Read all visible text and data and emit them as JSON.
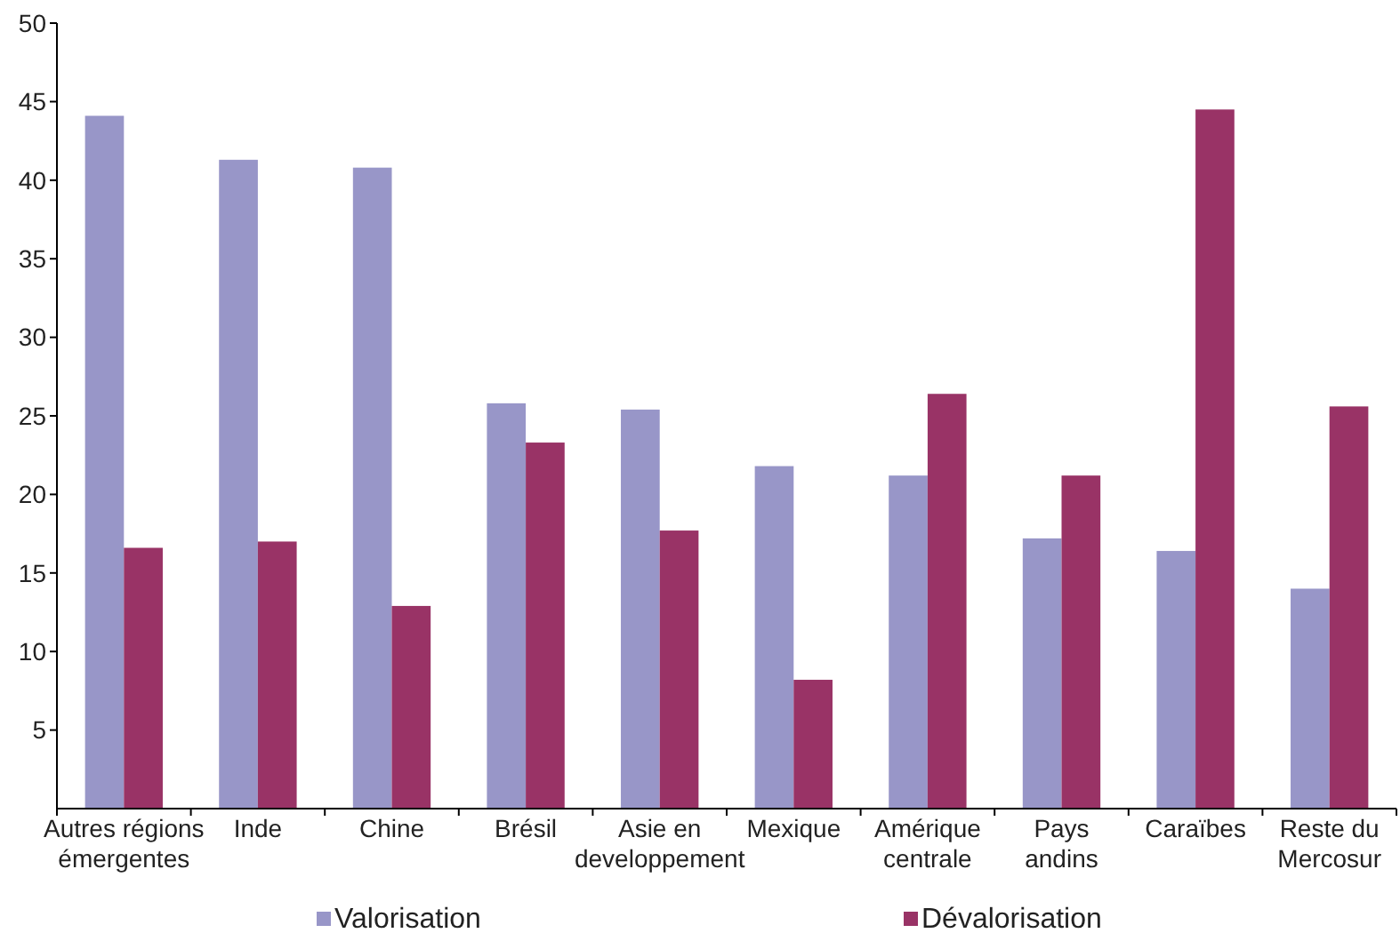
{
  "chart_data": {
    "type": "bar",
    "categories": [
      "Autres régions\némergentes",
      "Inde",
      "Chine",
      "Brésil",
      "Asie en\ndeveloppement",
      "Mexique",
      "Amérique\ncentrale",
      "Pays\nandins",
      "Caraïbes",
      "Reste du\nMercosur"
    ],
    "series": [
      {
        "name": "Valorisation",
        "color": "#9896c8",
        "values": [
          44.1,
          41.3,
          40.8,
          25.8,
          25.4,
          21.8,
          21.2,
          17.2,
          16.4,
          14.0
        ]
      },
      {
        "name": "Dévalorisation",
        "color": "#993366",
        "values": [
          16.6,
          17.0,
          12.9,
          23.3,
          17.7,
          8.2,
          26.4,
          21.2,
          44.5,
          25.6
        ]
      }
    ],
    "ylim": [
      0,
      50
    ],
    "yticks": [
      5,
      10,
      15,
      20,
      25,
      30,
      35,
      40,
      45,
      50
    ],
    "legend": "bottom"
  }
}
